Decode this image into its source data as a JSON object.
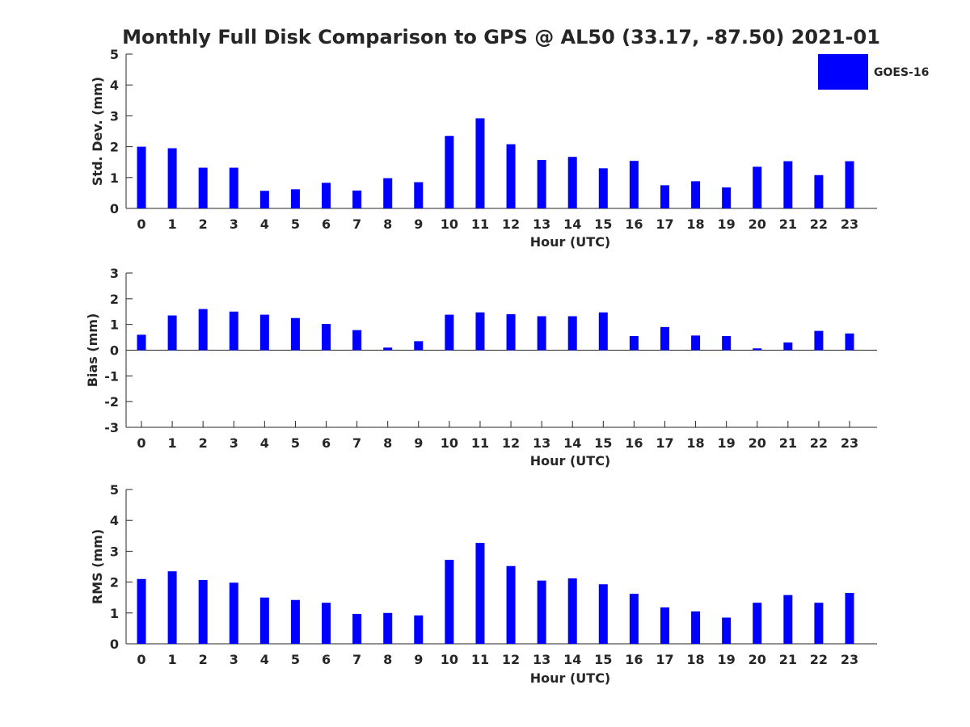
{
  "title": "Monthly Full Disk Comparison to GPS @ AL50 (33.17, -87.50) 2021-01",
  "legend": {
    "label": "GOES-16",
    "color": "#0000ff"
  },
  "chart_data": [
    {
      "type": "bar",
      "xlabel": "Hour (UTC)",
      "ylabel": "Std. Dev. (mm)",
      "ylim": [
        0,
        5
      ],
      "yticks": [
        0,
        1,
        2,
        3,
        4,
        5
      ],
      "categories": [
        "0",
        "1",
        "2",
        "3",
        "4",
        "5",
        "6",
        "7",
        "8",
        "9",
        "10",
        "11",
        "12",
        "13",
        "14",
        "15",
        "16",
        "17",
        "18",
        "19",
        "20",
        "21",
        "22",
        "23"
      ],
      "series": [
        {
          "name": "GOES-16",
          "values": [
            2.0,
            1.95,
            1.32,
            1.32,
            0.57,
            0.62,
            0.83,
            0.58,
            0.98,
            0.85,
            2.35,
            2.92,
            2.08,
            1.57,
            1.67,
            1.3,
            1.54,
            0.75,
            0.88,
            0.68,
            1.35,
            1.53,
            1.08,
            1.53
          ]
        }
      ]
    },
    {
      "type": "bar",
      "xlabel": "Hour (UTC)",
      "ylabel": "Bias (mm)",
      "ylim": [
        -3,
        3
      ],
      "yticks": [
        -3,
        -2,
        -1,
        0,
        1,
        2,
        3
      ],
      "categories": [
        "0",
        "1",
        "2",
        "3",
        "4",
        "5",
        "6",
        "7",
        "8",
        "9",
        "10",
        "11",
        "12",
        "13",
        "14",
        "15",
        "16",
        "17",
        "18",
        "19",
        "20",
        "21",
        "22",
        "23"
      ],
      "series": [
        {
          "name": "GOES-16",
          "values": [
            0.6,
            1.35,
            1.6,
            1.5,
            1.38,
            1.25,
            1.02,
            0.78,
            0.1,
            0.35,
            1.38,
            1.47,
            1.4,
            1.32,
            1.32,
            1.47,
            0.55,
            0.9,
            0.57,
            0.55,
            0.07,
            0.3,
            0.75,
            0.65
          ]
        }
      ]
    },
    {
      "type": "bar",
      "xlabel": "Hour (UTC)",
      "ylabel": "RMS (mm)",
      "ylim": [
        0,
        5
      ],
      "yticks": [
        0,
        1,
        2,
        3,
        4,
        5
      ],
      "categories": [
        "0",
        "1",
        "2",
        "3",
        "4",
        "5",
        "6",
        "7",
        "8",
        "9",
        "10",
        "11",
        "12",
        "13",
        "14",
        "15",
        "16",
        "17",
        "18",
        "19",
        "20",
        "21",
        "22",
        "23"
      ],
      "series": [
        {
          "name": "GOES-16",
          "values": [
            2.1,
            2.35,
            2.07,
            1.98,
            1.5,
            1.42,
            1.33,
            0.97,
            1.0,
            0.92,
            2.72,
            3.27,
            2.52,
            2.05,
            2.12,
            1.93,
            1.62,
            1.18,
            1.05,
            0.85,
            1.33,
            1.58,
            1.33,
            1.65
          ]
        }
      ]
    }
  ]
}
